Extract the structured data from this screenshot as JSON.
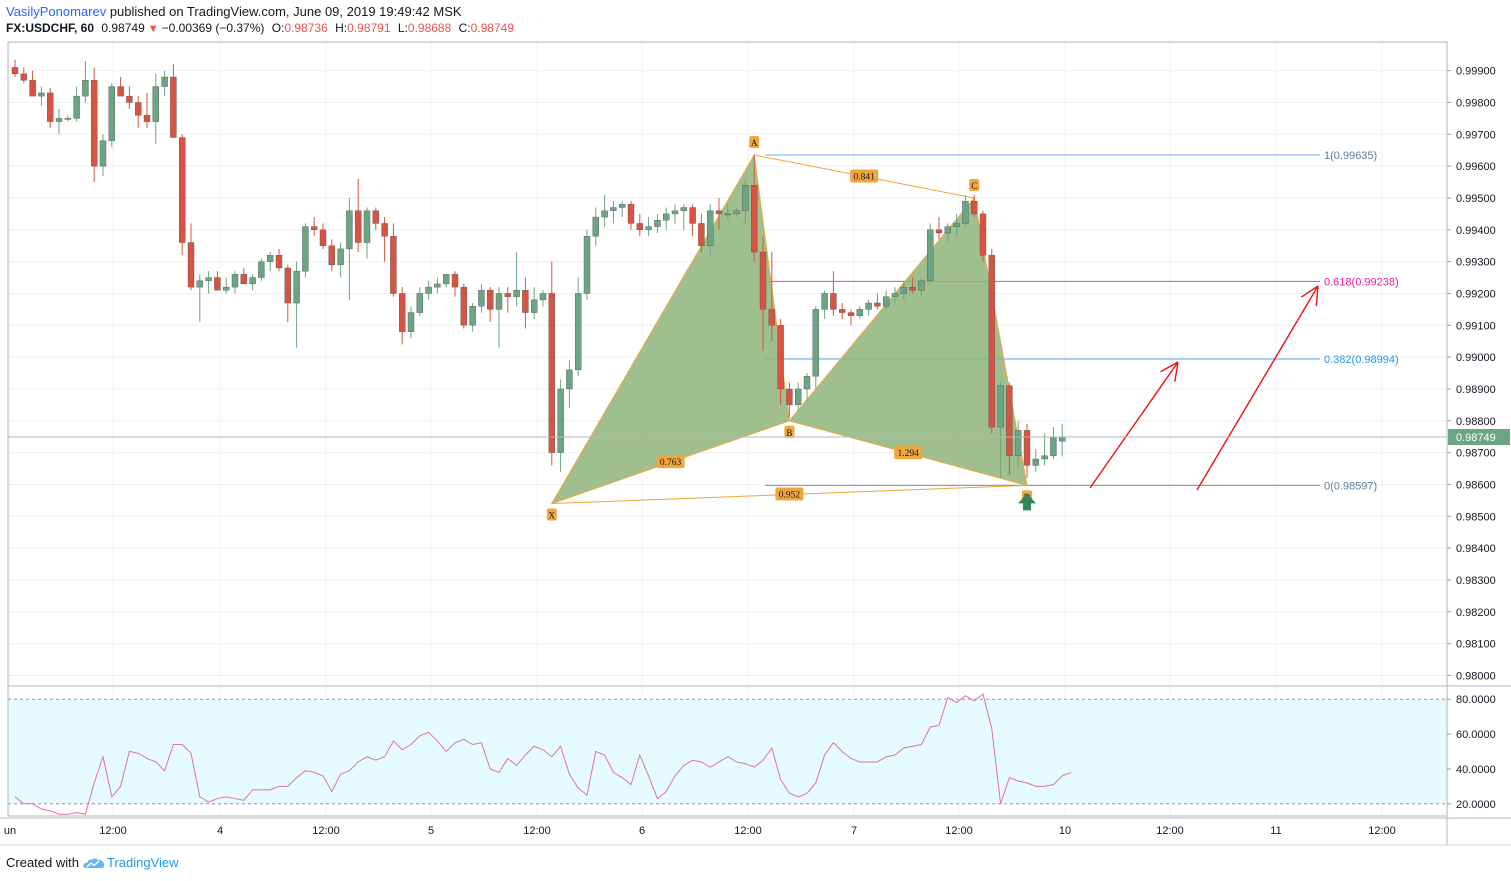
{
  "header": {
    "author": "VasilyPonomarev",
    "published_text": "published on TradingView.com, June 09, 2019 19:49:42 MSK",
    "symbol": "FX:USDCHF, 60",
    "last": "0.98749",
    "change": "−0.00369 (−0.37%)",
    "open_label": "O:",
    "open": "0.98736",
    "high_label": "H:",
    "high": "0.98791",
    "low_label": "L:",
    "low": "0.98688",
    "close_label": "C:",
    "close": "0.98749"
  },
  "footer": {
    "created_with": "Created with",
    "brand": "TradingView",
    "logo_icon": "tradingview-cloud-icon"
  },
  "colors": {
    "up": "#6ba583",
    "down": "#d75442",
    "pattern_fill": "#8fb47a",
    "pattern_line": "#f0a63a",
    "fib_0": "#787b86",
    "fib_382": "#2196f3",
    "fib_618": "#e91e9e",
    "fib_1": "#5b9cf6",
    "rsi": "#e06fb3",
    "rsi_band": "#e6fbff",
    "arrow": "#ee1111",
    "buy_arrow": "#35855b"
  },
  "chart_data": [
    {
      "type": "candlestick",
      "symbol": "FX:USDCHF",
      "timeframe": "60",
      "y_ticks": [
        "0.99900",
        "0.99800",
        "0.99700",
        "0.99600",
        "0.99500",
        "0.99400",
        "0.99300",
        "0.99200",
        "0.99100",
        "0.99000",
        "0.98900",
        "0.98800",
        "0.98700",
        "0.98600",
        "0.98500",
        "0.98400",
        "0.98300",
        "0.98200",
        "0.98100",
        "0.98000"
      ],
      "ylim": [
        0.9797,
        0.9999
      ],
      "x_ticks": [
        "un",
        "12:00",
        "4",
        "12:00",
        "5",
        "12:00",
        "6",
        "12:00",
        "7",
        "12:00",
        "10",
        "12:00",
        "11",
        "12:00"
      ],
      "last_price_label": "0.98749",
      "candles": [
        [
          0.9991,
          0.99935,
          0.9988,
          0.9989
        ],
        [
          0.9989,
          0.9991,
          0.9986,
          0.9987
        ],
        [
          0.9987,
          0.999,
          0.9982,
          0.9982
        ],
        [
          0.9982,
          0.9985,
          0.9979,
          0.9983
        ],
        [
          0.9983,
          0.99845,
          0.9972,
          0.9974
        ],
        [
          0.9974,
          0.9978,
          0.997,
          0.9975
        ],
        [
          0.9975,
          0.9976,
          0.9974,
          0.9975
        ],
        [
          0.9975,
          0.9985,
          0.9974,
          0.9982
        ],
        [
          0.9982,
          0.9993,
          0.998,
          0.9987
        ],
        [
          0.9987,
          0.9991,
          0.9955,
          0.996
        ],
        [
          0.996,
          0.997,
          0.9957,
          0.9968
        ],
        [
          0.9968,
          0.9986,
          0.9966,
          0.9985
        ],
        [
          0.9985,
          0.9988,
          0.9982,
          0.9982
        ],
        [
          0.9982,
          0.9985,
          0.9978,
          0.998
        ],
        [
          0.998,
          0.9982,
          0.9972,
          0.9976
        ],
        [
          0.9976,
          0.9983,
          0.9972,
          0.9974
        ],
        [
          0.9974,
          0.9989,
          0.9967,
          0.9985
        ],
        [
          0.9985,
          0.999,
          0.9982,
          0.9988
        ],
        [
          0.9988,
          0.9992,
          0.997,
          0.9969
        ],
        [
          0.9969,
          0.997,
          0.9932,
          0.9936
        ],
        [
          0.9936,
          0.9942,
          0.9921,
          0.9922
        ],
        [
          0.9922,
          0.9926,
          0.9911,
          0.9924
        ],
        [
          0.9924,
          0.9927,
          0.992,
          0.9925
        ],
        [
          0.9925,
          0.9927,
          0.9921,
          0.9921
        ],
        [
          0.9921,
          0.9925,
          0.992,
          0.9922
        ],
        [
          0.9922,
          0.9927,
          0.992,
          0.9926
        ],
        [
          0.9926,
          0.9928,
          0.9923,
          0.9923
        ],
        [
          0.9923,
          0.9926,
          0.9921,
          0.9925
        ],
        [
          0.9925,
          0.9931,
          0.9924,
          0.993
        ],
        [
          0.993,
          0.9933,
          0.9927,
          0.9932
        ],
        [
          0.9932,
          0.9934,
          0.9927,
          0.9928
        ],
        [
          0.9928,
          0.9929,
          0.9911,
          0.9917
        ],
        [
          0.9917,
          0.993,
          0.9903,
          0.9927
        ],
        [
          0.9927,
          0.9942,
          0.9925,
          0.9941
        ],
        [
          0.9941,
          0.9944,
          0.9938,
          0.994
        ],
        [
          0.994,
          0.9942,
          0.9934,
          0.9935
        ],
        [
          0.9935,
          0.9937,
          0.9927,
          0.9929
        ],
        [
          0.9929,
          0.9936,
          0.9925,
          0.9934
        ],
        [
          0.9934,
          0.995,
          0.9918,
          0.9946
        ],
        [
          0.9946,
          0.9956,
          0.9933,
          0.9936
        ],
        [
          0.9936,
          0.9947,
          0.9931,
          0.9946
        ],
        [
          0.9946,
          0.9947,
          0.994,
          0.9942
        ],
        [
          0.9942,
          0.9944,
          0.993,
          0.9938
        ],
        [
          0.9938,
          0.9942,
          0.9919,
          0.992
        ],
        [
          0.992,
          0.9922,
          0.9904,
          0.9908
        ],
        [
          0.9908,
          0.9916,
          0.9906,
          0.9914
        ],
        [
          0.9914,
          0.9922,
          0.9913,
          0.992
        ],
        [
          0.992,
          0.9924,
          0.9918,
          0.9922
        ],
        [
          0.9922,
          0.9925,
          0.992,
          0.9923
        ],
        [
          0.9923,
          0.9926,
          0.9922,
          0.9926
        ],
        [
          0.9926,
          0.9927,
          0.9919,
          0.9922
        ],
        [
          0.9922,
          0.9923,
          0.9909,
          0.991
        ],
        [
          0.991,
          0.9917,
          0.9908,
          0.9916
        ],
        [
          0.9916,
          0.9923,
          0.9914,
          0.9921
        ],
        [
          0.9921,
          0.9922,
          0.9911,
          0.9915
        ],
        [
          0.9915,
          0.9922,
          0.9903,
          0.992
        ],
        [
          0.992,
          0.9922,
          0.9914,
          0.9919
        ],
        [
          0.9919,
          0.9933,
          0.9916,
          0.9921
        ],
        [
          0.9921,
          0.9925,
          0.9909,
          0.9914
        ],
        [
          0.9914,
          0.9922,
          0.9912,
          0.9918
        ],
        [
          0.9918,
          0.9921,
          0.9916,
          0.992
        ],
        [
          0.992,
          0.993,
          0.9866,
          0.987
        ],
        [
          0.987,
          0.9893,
          0.9864,
          0.989
        ],
        [
          0.989,
          0.9899,
          0.9884,
          0.9896
        ],
        [
          0.9896,
          0.9925,
          0.9894,
          0.992
        ],
        [
          0.992,
          0.994,
          0.9918,
          0.9938
        ],
        [
          0.9938,
          0.9947,
          0.9935,
          0.9944
        ],
        [
          0.9944,
          0.9951,
          0.9941,
          0.9946
        ],
        [
          0.9946,
          0.9949,
          0.9942,
          0.9947
        ],
        [
          0.9947,
          0.9949,
          0.9944,
          0.9948
        ],
        [
          0.9948,
          0.9949,
          0.994,
          0.9942
        ],
        [
          0.9942,
          0.9945,
          0.9938,
          0.994
        ],
        [
          0.994,
          0.9944,
          0.9938,
          0.9941
        ],
        [
          0.9941,
          0.9945,
          0.9939,
          0.9943
        ],
        [
          0.9943,
          0.9947,
          0.994,
          0.9945
        ],
        [
          0.9945,
          0.9948,
          0.9942,
          0.9946
        ],
        [
          0.9946,
          0.9948,
          0.994,
          0.9947
        ],
        [
          0.9947,
          0.9948,
          0.9938,
          0.9942
        ],
        [
          0.9942,
          0.9945,
          0.9933,
          0.9935
        ],
        [
          0.9935,
          0.9948,
          0.9932,
          0.9946
        ],
        [
          0.9946,
          0.995,
          0.994,
          0.9945
        ],
        [
          0.9945,
          0.9948,
          0.9943,
          0.9945
        ],
        [
          0.9945,
          0.9947,
          0.9944,
          0.9946
        ],
        [
          0.9946,
          0.9956,
          0.9942,
          0.9954
        ],
        [
          0.9954,
          0.99635,
          0.993,
          0.9933
        ],
        [
          0.9933,
          0.9938,
          0.9902,
          0.9915
        ],
        [
          0.9915,
          0.9933,
          0.9905,
          0.991
        ],
        [
          0.991,
          0.9912,
          0.9885,
          0.989
        ],
        [
          0.989,
          0.9892,
          0.9881,
          0.9885
        ],
        [
          0.9885,
          0.9892,
          0.9883,
          0.989
        ],
        [
          0.989,
          0.9895,
          0.9886,
          0.9894
        ],
        [
          0.9894,
          0.9916,
          0.989,
          0.9915
        ],
        [
          0.9915,
          0.9921,
          0.9912,
          0.992
        ],
        [
          0.992,
          0.9927,
          0.9913,
          0.9915
        ],
        [
          0.9915,
          0.9917,
          0.9912,
          0.9914
        ],
        [
          0.9914,
          0.9915,
          0.991,
          0.9913
        ],
        [
          0.9913,
          0.9916,
          0.9912,
          0.9915
        ],
        [
          0.9915,
          0.9918,
          0.9913,
          0.9917
        ],
        [
          0.9917,
          0.992,
          0.9915,
          0.9916
        ],
        [
          0.9916,
          0.9921,
          0.9915,
          0.9919
        ],
        [
          0.9919,
          0.9922,
          0.9917,
          0.992
        ],
        [
          0.992,
          0.9924,
          0.9918,
          0.9922
        ],
        [
          0.9922,
          0.9925,
          0.992,
          0.9921
        ],
        [
          0.9921,
          0.9925,
          0.9919,
          0.9924
        ],
        [
          0.9924,
          0.9942,
          0.9923,
          0.994
        ],
        [
          0.994,
          0.9944,
          0.9937,
          0.9939
        ],
        [
          0.9939,
          0.9942,
          0.9936,
          0.9941
        ],
        [
          0.9941,
          0.9945,
          0.9938,
          0.9942
        ],
        [
          0.9942,
          0.9951,
          0.9941,
          0.9949
        ],
        [
          0.9949,
          0.9951,
          0.9944,
          0.9945
        ],
        [
          0.9945,
          0.9946,
          0.993,
          0.9932
        ],
        [
          0.9932,
          0.9934,
          0.9876,
          0.9878
        ],
        [
          0.9878,
          0.9892,
          0.9862,
          0.9891
        ],
        [
          0.9891,
          0.9892,
          0.9863,
          0.9869
        ],
        [
          0.9869,
          0.988,
          0.9865,
          0.9877
        ],
        [
          0.9877,
          0.9879,
          0.9862,
          0.9866
        ],
        [
          0.9866,
          0.9871,
          0.9864,
          0.9868
        ],
        [
          0.9868,
          0.9876,
          0.9866,
          0.9869
        ],
        [
          0.9869,
          0.9878,
          0.9868,
          0.9875
        ],
        [
          0.98736,
          0.98791,
          0.98688,
          0.98749
        ]
      ],
      "harmonic_pattern": {
        "points": [
          {
            "label": "X",
            "bar": 61,
            "price": 0.9854
          },
          {
            "label": "A",
            "bar": 84,
            "price": 0.99635
          },
          {
            "label": "B",
            "bar": 88,
            "price": 0.988
          },
          {
            "label": "C",
            "bar": 109,
            "price": 0.995
          },
          {
            "label": "D",
            "bar": 115,
            "price": 0.98597
          }
        ],
        "ratios": [
          {
            "value": "0.763",
            "from": "X",
            "to": "B"
          },
          {
            "value": "0.841",
            "from": "A",
            "to": "C"
          },
          {
            "value": "1.294",
            "from": "B",
            "to": "D"
          },
          {
            "value": "0.952",
            "from": "X",
            "to": "D"
          }
        ]
      },
      "fibonacci": [
        {
          "label": "1(0.99635)",
          "price": 0.99635
        },
        {
          "label": "0.618(0.99238)",
          "price": 0.99238
        },
        {
          "label": "0.382(0.98994)",
          "price": 0.98994
        },
        {
          "label": "0(0.98597)",
          "price": 0.98597
        }
      ]
    },
    {
      "type": "line",
      "indicator": "RSI",
      "y_ticks": [
        "80.0000",
        "60.0000",
        "40.0000",
        "20.0000"
      ],
      "ylim": [
        13,
        87
      ],
      "band": [
        20,
        80
      ],
      "values": [
        24,
        20,
        20,
        17,
        16,
        14,
        14,
        15,
        14,
        32,
        47,
        24,
        30,
        50,
        49,
        46,
        44,
        39,
        54,
        54,
        49,
        24,
        21,
        23,
        24,
        23,
        22,
        28,
        28,
        28,
        30,
        30,
        35,
        39,
        38,
        36,
        27,
        37,
        39,
        44,
        47,
        45,
        47,
        56,
        51,
        54,
        59,
        61,
        56,
        50,
        55,
        57,
        54,
        55,
        40,
        38,
        46,
        42,
        48,
        53,
        51,
        47,
        53,
        37,
        29,
        25,
        50,
        48,
        38,
        35,
        31,
        48,
        36,
        23,
        27,
        36,
        42,
        45,
        44,
        41,
        44,
        47,
        44,
        43,
        41,
        45,
        52,
        34,
        26,
        24,
        26,
        32,
        48,
        55,
        50,
        46,
        44,
        44,
        44,
        47,
        48,
        52,
        53,
        54,
        64,
        65,
        81,
        78,
        82,
        79,
        83,
        63,
        20,
        35,
        33,
        32,
        30,
        30,
        31,
        36,
        38
      ]
    }
  ]
}
